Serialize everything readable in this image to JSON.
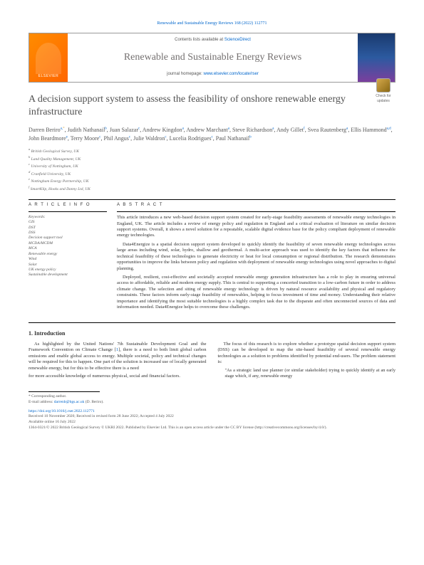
{
  "running_header": "Renewable and Sustainable Energy Reviews 168 (2022) 112771",
  "banner": {
    "publisher": "ELSEVIER",
    "contents_prefix": "Contents lists available at ",
    "contents_link": "ScienceDirect",
    "journal_name": "Renewable and Sustainable Energy Reviews",
    "homepage_prefix": "journal homepage: ",
    "homepage_link": "www.elsevier.com/locate/rser"
  },
  "check_badge": "Check for updates",
  "title": "A decision support system to assess the feasibility of onshore renewable energy infrastructure",
  "authors_html": "Darren Beriro|a,*|, Judith Nathanail|b|, Juan Salazar|c|, Andrew Kingdon|a|, Andrew Marchant|a|, Steve Richardson|a|, Andy Gillet|f|, Svea Rautenberg|a|, Ellis Hammond|a,d|, John Beardmore|e|, Terry Moore|c|, Phil Angus|c|, Julie Waldron|c|, Lucelia Rodrigues|c|, Paul Nathanail|b|",
  "affiliations": [
    "a British Geological Survey, UK",
    "b Land Quality Management, UK",
    "c University of Nottingham, UK",
    "d Cranfield University, UK",
    "e Nottingham Energy Partnership, UK",
    "f SmartKlip, Hooks and Danny Ltd, UK"
  ],
  "info": {
    "heading": "A R T I C L E  I N F O",
    "keywords_label": "Keywords:",
    "keywords": [
      "GIS",
      "DST",
      "DSS",
      "Decision support tool",
      "MCDA/MCDM",
      "MCA",
      "Renewable energy",
      "Wind",
      "Solar",
      "UK energy policy",
      "Sustainable development"
    ]
  },
  "abstract": {
    "heading": "A B S T R A C T",
    "paragraphs": [
      "This article introduces a new web-based decision support system created for early-stage feasibility assessments of renewable energy technologies in England, UK. The article includes a review of energy policy and regulation in England and a critical evaluation of literature on similar decision support systems. Overall, it shows a novel solution for a repeatable, scalable digital evidence base for the policy compliant deployment of renewable energy technologies.",
      "Data4Energize is a spatial decision support system developed to quickly identify the feasibility of seven renewable energy technologies across large areas including wind, solar, hydro, shallow and geothermal. A multi-actor approach was used to identify the key factors that influence the technical feasibility of these technologies to generate electricity or heat for local consumption or regional distribution. The research demonstrates opportunities to improve the links between policy and regulation with deployment of renewable energy technologies using novel approaches to digital planning.",
      "Deployed, resilient, cost-effective and societally accepted renewable energy generation infrastructure has a role to play in ensuring universal access to affordable, reliable and modern energy supply. This is central to supporting a concerted transition to a low-carbon future in order to address climate change. The selection and siting of renewable energy technology is driven by natural resource availability and physical and regulatory constraints. These factors inform early-stage feasibility of renewables, helping to focus investment of time and money. Understanding their relative importance and identifying the most suitable technologies is a highly complex task due to the disparate and often unconnected sources of data and information needed. Data4Energize helps to overcome these challenges."
    ]
  },
  "intro": {
    "heading": "1.  Introduction",
    "p1": "As highlighted by the United Nations' 7th Sustainable Development Goal and the Framework Convention on Climate Change [1], there is a need to both limit global carbon emissions and enable global access to energy. Multiple societal, policy and technical changes will be required for this to happen. One part of the solution is increased use of locally generated renewable energy, but for this to be effective there is a need",
    "p2": "for more accessible knowledge of numerous physical, social and financial factors.",
    "p3": "The focus of this research is to explore whether a prototype spatial decision support system (DSS) can be developed to map the site-based feasibility of several renewable energy technologies as a solution to problems identified by potential end-users. The problem statement is:",
    "quote": "\"As a strategic land use planner (or similar stakeholder) trying to quickly identify at an early stage which, if any, renewable energy"
  },
  "footer": {
    "corresponding_label": "* Corresponding author.",
    "email_label": "E-mail address: ",
    "email": "darrenb@bgs.ac.uk",
    "email_suffix": " (D. Beriro).",
    "doi": "https://doi.org/10.1016/j.rser.2022.112771",
    "received": "Received 10 November 2020; Received in revised form 28 June 2022; Accepted 4 July 2022",
    "available": "Available online 16 July 2022",
    "copyright": "1364-0321/© 2022 British Geological Survey © UKRI 2022. Published by Elsevier Ltd. This is an open access article under the CC BY license (http://creativecommons.org/licenses/by/4.0/)."
  },
  "colors": {
    "link": "#0066cc",
    "elsevier_orange": "#ff7700",
    "title_gray": "#505050"
  }
}
